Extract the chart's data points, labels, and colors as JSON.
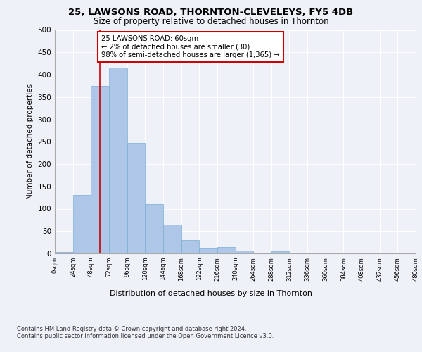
{
  "title1": "25, LAWSONS ROAD, THORNTON-CLEVELEYS, FY5 4DB",
  "title2": "Size of property relative to detached houses in Thornton",
  "xlabel": "Distribution of detached houses by size in Thornton",
  "ylabel": "Number of detached properties",
  "bin_edges": [
    0,
    24,
    48,
    72,
    96,
    120,
    144,
    168,
    192,
    216,
    240,
    264,
    288,
    312,
    336,
    360,
    384,
    408,
    432,
    456,
    480
  ],
  "bar_values": [
    3,
    130,
    375,
    415,
    247,
    110,
    65,
    30,
    13,
    14,
    6,
    1,
    4,
    1,
    0,
    0,
    0,
    0,
    0,
    1
  ],
  "bar_color": "#aec6e8",
  "bar_edge_color": "#7aadd4",
  "vline_x": 60,
  "vline_color": "#cc0000",
  "annotation_text": "25 LAWSONS ROAD: 60sqm\n← 2% of detached houses are smaller (30)\n98% of semi-detached houses are larger (1,365) →",
  "annotation_box_color": "#ffffff",
  "annotation_box_edge": "#cc0000",
  "ylim": [
    0,
    500
  ],
  "yticks": [
    0,
    50,
    100,
    150,
    200,
    250,
    300,
    350,
    400,
    450,
    500
  ],
  "footer_text": "Contains HM Land Registry data © Crown copyright and database right 2024.\nContains public sector information licensed under the Open Government Licence v3.0.",
  "bg_color": "#eef2f8",
  "plot_bg_color": "#eef2f8",
  "tick_labels": [
    "0sqm",
    "24sqm",
    "48sqm",
    "72sqm",
    "96sqm",
    "120sqm",
    "144sqm",
    "168sqm",
    "192sqm",
    "216sqm",
    "240sqm",
    "264sqm",
    "288sqm",
    "312sqm",
    "336sqm",
    "360sqm",
    "384sqm",
    "408sqm",
    "432sqm",
    "456sqm",
    "480sqm"
  ]
}
